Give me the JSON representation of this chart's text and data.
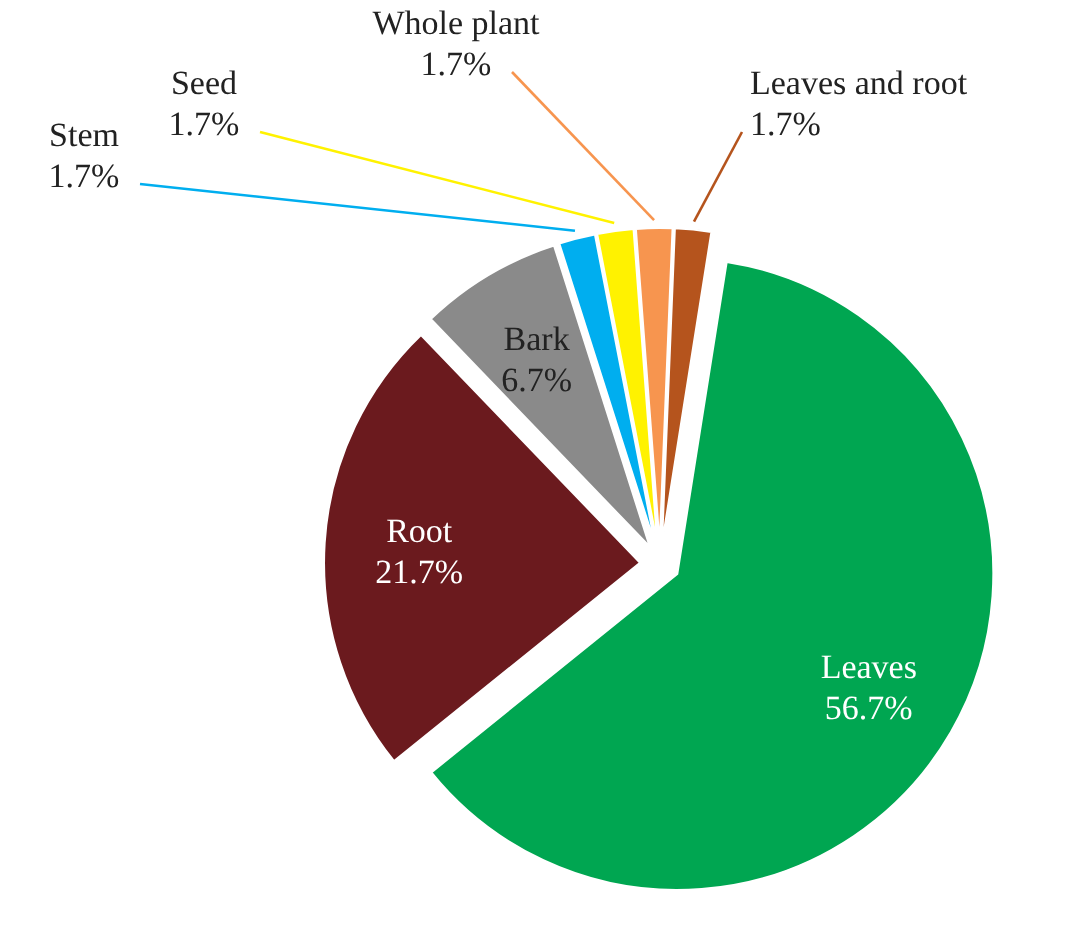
{
  "chart_data": {
    "type": "pie",
    "categories": [
      "Leaves",
      "Root",
      "Bark",
      "Stem",
      "Seed",
      "Whole plant",
      "Leaves and root"
    ],
    "values": [
      56.7,
      21.7,
      6.7,
      1.7,
      1.7,
      1.7,
      1.7
    ],
    "colors": [
      "#00a651",
      "#6b1a1e",
      "#8a8a8a",
      "#00aeef",
      "#fff200",
      "#f7954f",
      "#b5541d"
    ],
    "value_labels": [
      "56.7%",
      "21.7%",
      "6.7%",
      "1.7%",
      "1.7%",
      "1.7%",
      "1.7%"
    ]
  }
}
